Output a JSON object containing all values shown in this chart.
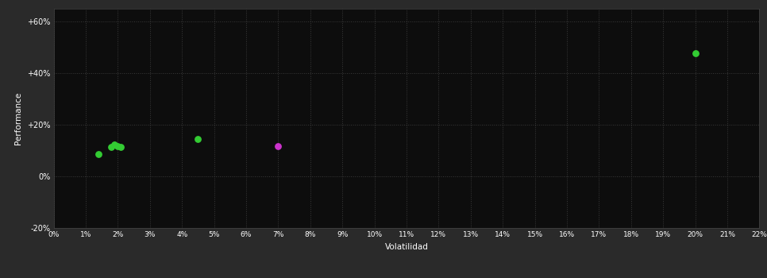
{
  "background_color": "#2a2a2a",
  "plot_bg_color": "#0d0d0d",
  "grid_color": "#3a3a3a",
  "text_color": "#ffffff",
  "xlabel": "Volatilidad",
  "ylabel": "Performance",
  "xlim": [
    0.0,
    0.22
  ],
  "ylim": [
    -0.2,
    0.65
  ],
  "xtick_positions": [
    0.0,
    0.01,
    0.02,
    0.03,
    0.04,
    0.05,
    0.06,
    0.07,
    0.08,
    0.09,
    0.1,
    0.11,
    0.12,
    0.13,
    0.14,
    0.15,
    0.16,
    0.17,
    0.18,
    0.19,
    0.2,
    0.21,
    0.22
  ],
  "xtick_labels": [
    "0%",
    "1%",
    "2%",
    "3%",
    "4%",
    "5%",
    "6%",
    "7%",
    "8%",
    "9%",
    "10%",
    "11%",
    "12%",
    "13%",
    "14%",
    "15%",
    "16%",
    "17%",
    "18%",
    "19%",
    "20%",
    "21%",
    "22%"
  ],
  "ytick_values": [
    -0.2,
    0.0,
    0.2,
    0.4,
    0.6
  ],
  "ytick_labels": [
    "-20%",
    "0%",
    "+20%",
    "+40%",
    "+60%"
  ],
  "green_points": [
    [
      0.014,
      0.085
    ],
    [
      0.018,
      0.115
    ],
    [
      0.019,
      0.122
    ],
    [
      0.02,
      0.118
    ],
    [
      0.021,
      0.113
    ],
    [
      0.045,
      0.143
    ],
    [
      0.2,
      0.475
    ]
  ],
  "magenta_points": [
    [
      0.07,
      0.118
    ]
  ],
  "green_color": "#33cc33",
  "magenta_color": "#cc33cc",
  "marker_size": 28
}
